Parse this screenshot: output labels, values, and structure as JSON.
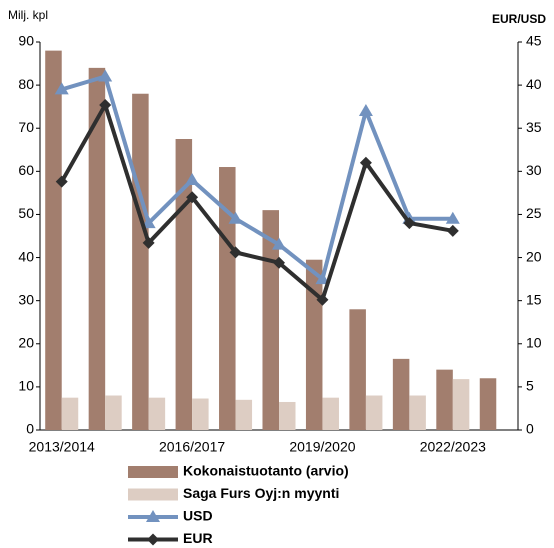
{
  "chart_data": {
    "type": "bar",
    "categories": [
      "2013/2014",
      null,
      null,
      "2016/2017",
      null,
      null,
      "2019/2020",
      null,
      null,
      "2022/2023",
      null
    ],
    "y_label": "Milj. kpl",
    "y2_label": "EUR/USD",
    "ylim": [
      0,
      90
    ],
    "yticks": [
      0,
      10,
      20,
      30,
      40,
      50,
      60,
      70,
      80,
      90
    ],
    "y2lim": [
      0,
      45
    ],
    "y2ticks": [
      0,
      5,
      10,
      15,
      20,
      25,
      30,
      35,
      40,
      45
    ],
    "grid": false,
    "legend": "bottom",
    "series": [
      {
        "name": "Kokonaistuotanto (arvio)",
        "type": "bar",
        "color": "#a27e6e",
        "values": [
          88,
          84,
          78,
          67.5,
          61,
          51,
          39.5,
          28,
          16.5,
          14,
          12
        ]
      },
      {
        "name": "Saga Furs Oyj:n myynti",
        "type": "bar",
        "color": "#ddcdc3",
        "values": [
          7.5,
          8,
          7.5,
          7.3,
          7,
          6.5,
          7.5,
          8,
          8,
          11.8,
          null
        ]
      },
      {
        "name": "USD",
        "type": "line",
        "marker": "triangle",
        "axis": "y2",
        "color": "#7292bf",
        "values": [
          39.5,
          41,
          24,
          29,
          24.5,
          21.5,
          17.5,
          37,
          24.5,
          24.5,
          null
        ]
      },
      {
        "name": "EUR",
        "type": "line",
        "marker": "diamond",
        "axis": "y2",
        "color": "#2f2f2f",
        "values": [
          28.8,
          37.7,
          21.7,
          27,
          20.6,
          19.4,
          15.1,
          31,
          24,
          23.1,
          null
        ]
      }
    ]
  }
}
